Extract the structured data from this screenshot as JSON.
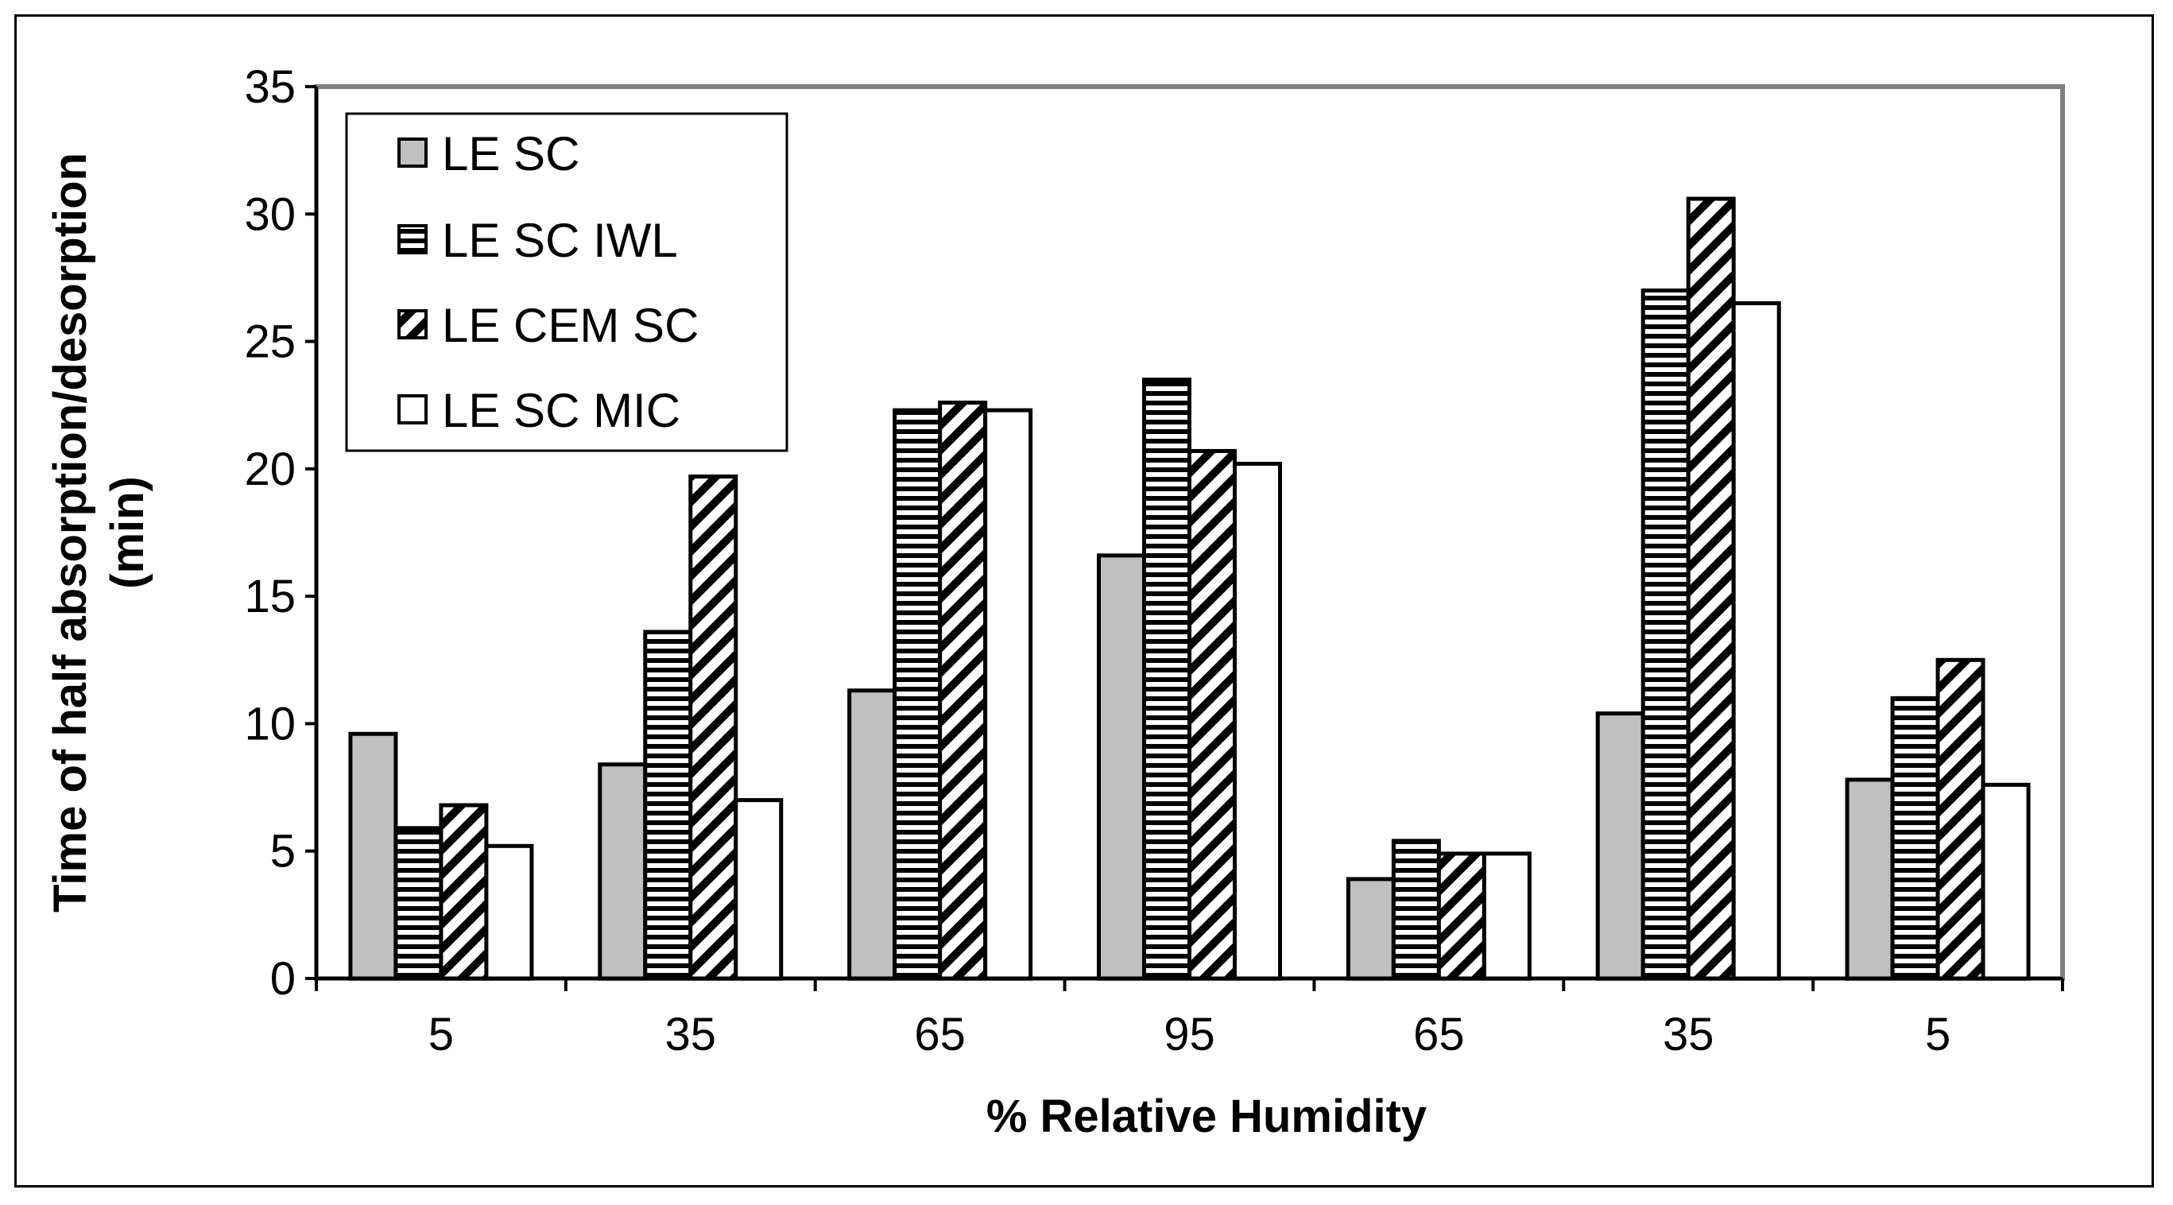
{
  "chart_data": {
    "type": "bar",
    "title": "",
    "xlabel": "% Relative Humidity",
    "ylabel_line1": "Time of half absorption/desorption",
    "ylabel_line2": "(min)",
    "ylim": [
      0,
      35
    ],
    "yticks": [
      0,
      5,
      10,
      15,
      20,
      25,
      30,
      35
    ],
    "categories": [
      "5",
      "35",
      "65",
      "95",
      "65",
      "35",
      "5"
    ],
    "legend_position": "top-left",
    "grid": false,
    "series": [
      {
        "name": "LE SC",
        "pattern": "solid-gray",
        "values": [
          9.6,
          8.4,
          11.3,
          16.6,
          3.9,
          10.4,
          7.8
        ]
      },
      {
        "name": "LE SC IWL",
        "pattern": "horizontal-stripes",
        "values": [
          5.9,
          13.6,
          22.3,
          23.5,
          5.4,
          27.0,
          11.0
        ]
      },
      {
        "name": "LE CEM SC",
        "pattern": "diagonal-stripes",
        "values": [
          6.8,
          19.7,
          22.6,
          20.7,
          4.9,
          30.6,
          12.5
        ]
      },
      {
        "name": "LE SC MIC",
        "pattern": "white",
        "values": [
          5.2,
          7.0,
          22.3,
          20.2,
          4.9,
          26.5,
          7.6
        ]
      }
    ],
    "colors": {
      "gray": "#c0c0c0",
      "black": "#000000",
      "white": "#ffffff",
      "plot_border": "#808080"
    }
  }
}
